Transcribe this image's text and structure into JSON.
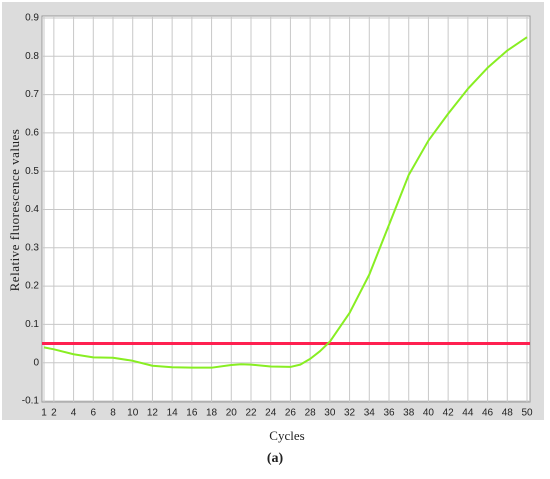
{
  "chart_data": {
    "type": "line",
    "x_label": "Cycles",
    "y_label": "Relative fluorescence values",
    "xlim": [
      1,
      50
    ],
    "xticks": [
      1,
      2,
      4,
      6,
      8,
      10,
      12,
      14,
      16,
      18,
      20,
      22,
      24,
      26,
      28,
      30,
      32,
      34,
      36,
      38,
      40,
      42,
      44,
      46,
      48,
      50
    ],
    "ylim": [
      -0.1,
      0.9
    ],
    "yticks": [
      -0.1,
      0,
      0.1,
      0.2,
      0.3,
      0.4,
      0.5,
      0.6,
      0.7,
      0.8,
      0.9
    ],
    "grid": true,
    "threshold": {
      "value": 0.05,
      "color": "#ff2050"
    },
    "series": [
      {
        "color": "#88ee22",
        "x": [
          1,
          2,
          4,
          6,
          8,
          10,
          12,
          14,
          16,
          18,
          20,
          21,
          22,
          24,
          26,
          27,
          28,
          29,
          30,
          32,
          34,
          36,
          38,
          40,
          42,
          44,
          46,
          48,
          50
        ],
        "values": [
          0.04,
          0.035,
          0.022,
          0.014,
          0.013,
          0.005,
          -0.008,
          -0.012,
          -0.013,
          -0.013,
          -0.006,
          -0.004,
          -0.005,
          -0.01,
          -0.011,
          -0.005,
          0.01,
          0.03,
          0.055,
          0.13,
          0.23,
          0.36,
          0.49,
          0.58,
          0.65,
          0.715,
          0.77,
          0.815,
          0.85
        ]
      }
    ]
  },
  "caption": "(a)"
}
